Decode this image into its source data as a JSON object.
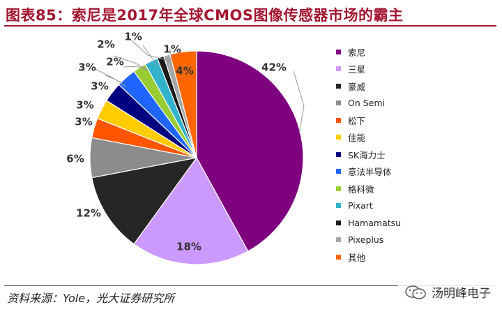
{
  "title": "图表85：索尼是2017年全球CMOS图像传感器市场的霸主",
  "source": "资料来源：Yole，光大证券研究所",
  "watermark": {
    "text": "汤明峰电子"
  },
  "chart_data": {
    "type": "pie",
    "title": "",
    "start": "12 o'clock",
    "direction": "clockwise",
    "unit": "%",
    "legend_position": "right",
    "slices": [
      {
        "name": "索尼",
        "value": 42,
        "label": "42%",
        "color": "#7f007f"
      },
      {
        "name": "三星",
        "value": 18,
        "label": "18%",
        "color": "#cc99ff"
      },
      {
        "name": "豪威",
        "value": 12,
        "label": "12%",
        "color": "#262626"
      },
      {
        "name": "On Semi",
        "value": 6,
        "label": "6%",
        "color": "#8c8c8c"
      },
      {
        "name": "松下",
        "value": 3,
        "label": "3%",
        "color": "#ff5500"
      },
      {
        "name": "佳能",
        "value": 3,
        "label": "3%",
        "color": "#ffcc00"
      },
      {
        "name": "SK海力士",
        "value": 3,
        "label": "3%",
        "color": "#000080"
      },
      {
        "name": "意法半导体",
        "value": 3,
        "label": "3%",
        "color": "#1f66ff"
      },
      {
        "name": "格科微",
        "value": 2,
        "label": "2%",
        "color": "#99cc33"
      },
      {
        "name": "Pixart",
        "value": 2,
        "label": "2%",
        "color": "#33b2cc"
      },
      {
        "name": "Hamamatsu",
        "value": 1,
        "label": "1%",
        "color": "#1a1a1a"
      },
      {
        "name": "Pixeplus",
        "value": 1,
        "label": "1%",
        "color": "#a6a6a6"
      },
      {
        "name": "其他",
        "value": 4,
        "label": "4%",
        "color": "#ff6600"
      }
    ]
  }
}
